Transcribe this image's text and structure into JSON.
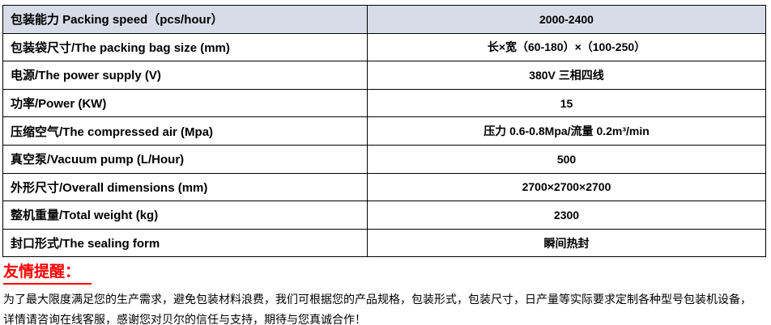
{
  "colors": {
    "header_bg": "#d7dce8",
    "table_border": "#000000",
    "reminder_red": "#ff0000",
    "text": "#000000"
  },
  "spec_table": {
    "rows": [
      {
        "label": "包装能力 Packing speed（pcs/hour）",
        "value": "2000-2400",
        "is_header": true
      },
      {
        "label": "包装袋尺寸/The packing bag size (mm)",
        "value": "长×宽（60-180）×（100-250）"
      },
      {
        "label": "电源/The power supply (V)",
        "value": "380V 三相四线"
      },
      {
        "label": "功率/Power (KW)",
        "value": "15"
      },
      {
        "label": "压缩空气/The compressed air (Mpa)",
        "value": "压力 0.6-0.8Mpa/流量 0.2m³/min"
      },
      {
        "label": "真空泵/Vacuum pump (L/Hour)",
        "value": "500"
      },
      {
        "label": "外形尺寸/Overall dimensions (mm)",
        "value": "2700×2700×2700"
      },
      {
        "label": "整机重量/Total weight (kg)",
        "value": "2300"
      },
      {
        "label": "封口形式/The sealing form",
        "value": "瞬间热封"
      }
    ]
  },
  "reminder": {
    "title": "友情提醒：",
    "lines": [
      "为了最大限度满足您的生产需求，避免包装材料浪费，我们可根据您的产品规格，包装形式，包装尺寸，日产量等实际要求定制各种型号包装机设备，",
      "详情请咨询在线客服，感谢您对贝尔的信任与支持，期待与您真诚合作！"
    ]
  }
}
